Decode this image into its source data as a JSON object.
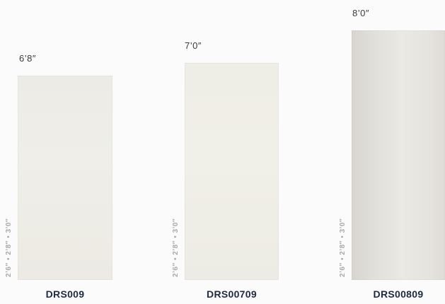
{
  "doors": [
    {
      "height_label": "6’8″",
      "width_options": "2’6″  •  2’8″  •  3’0″",
      "model": "DRS009"
    },
    {
      "height_label": "7’0″",
      "width_options": "2’6″  •  2’8″  •  3’0″",
      "model": "DRS00709"
    },
    {
      "height_label": "8’0″",
      "width_options": "2’6″  •  2’8″  •  3’0″",
      "model": "DRS00809"
    }
  ],
  "colors": {
    "background": "#fbfbfb",
    "door_panel": "#eceae3",
    "model_text": "#1e2a3f",
    "width_text": "#a9a9a9",
    "height_text": "#3a3a3a"
  }
}
